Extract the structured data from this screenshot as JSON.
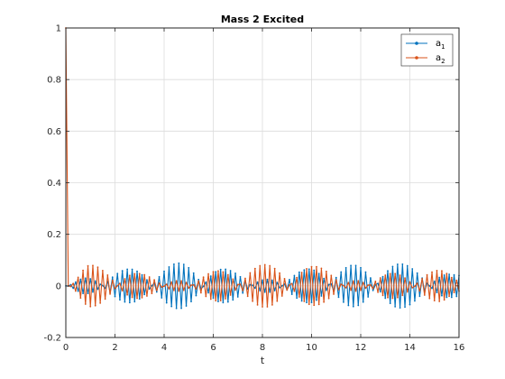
{
  "chart_data": {
    "type": "line",
    "title": "Mass 2 Excited",
    "xlabel": "t",
    "ylabel": "",
    "xlim": [
      0,
      16
    ],
    "ylim": [
      -0.2,
      1
    ],
    "x_ticks": [
      "0",
      "2",
      "4",
      "6",
      "8",
      "10",
      "12",
      "14",
      "16"
    ],
    "y_ticks": [
      "-0.2",
      "0",
      "0.2",
      "0.4",
      "0.6",
      "0.8",
      "1"
    ],
    "grid": true,
    "legend_position": "top-right",
    "sample_interval": 0.1,
    "series": [
      {
        "name": "a_1",
        "legend_label": "a",
        "legend_subscript": "1",
        "color": "#0072BD",
        "marker": "dot",
        "style": "stem",
        "envelope_peaks": [
          {
            "t": 0.0,
            "v": 0.0
          },
          {
            "t": 0.8,
            "v": 0.03
          },
          {
            "t": 2.6,
            "v": -0.065
          },
          {
            "t": 4.6,
            "v": 0.088
          },
          {
            "t": 6.4,
            "v": -0.065
          },
          {
            "t": 8.2,
            "v": 0.025
          },
          {
            "t": 9.9,
            "v": -0.065
          },
          {
            "t": 11.7,
            "v": 0.08
          },
          {
            "t": 13.6,
            "v": -0.085
          },
          {
            "t": 15.6,
            "v": 0.045
          },
          {
            "t": 16.0,
            "v": 0.04
          }
        ]
      },
      {
        "name": "a_2",
        "legend_label": "a",
        "legend_subscript": "2",
        "color": "#D95319",
        "marker": "dot",
        "style": "stem",
        "initial_value": 1.0,
        "envelope_peaks": [
          {
            "t": 0.1,
            "v": 0.0
          },
          {
            "t": 1.0,
            "v": -0.08
          },
          {
            "t": 2.9,
            "v": 0.048
          },
          {
            "t": 4.6,
            "v": -0.02
          },
          {
            "t": 6.2,
            "v": 0.058
          },
          {
            "t": 8.1,
            "v": -0.082
          },
          {
            "t": 10.1,
            "v": 0.075
          },
          {
            "t": 11.8,
            "v": -0.02
          },
          {
            "t": 13.3,
            "v": 0.048
          },
          {
            "t": 15.2,
            "v": -0.06
          },
          {
            "t": 16.0,
            "v": -0.02
          }
        ]
      }
    ]
  }
}
